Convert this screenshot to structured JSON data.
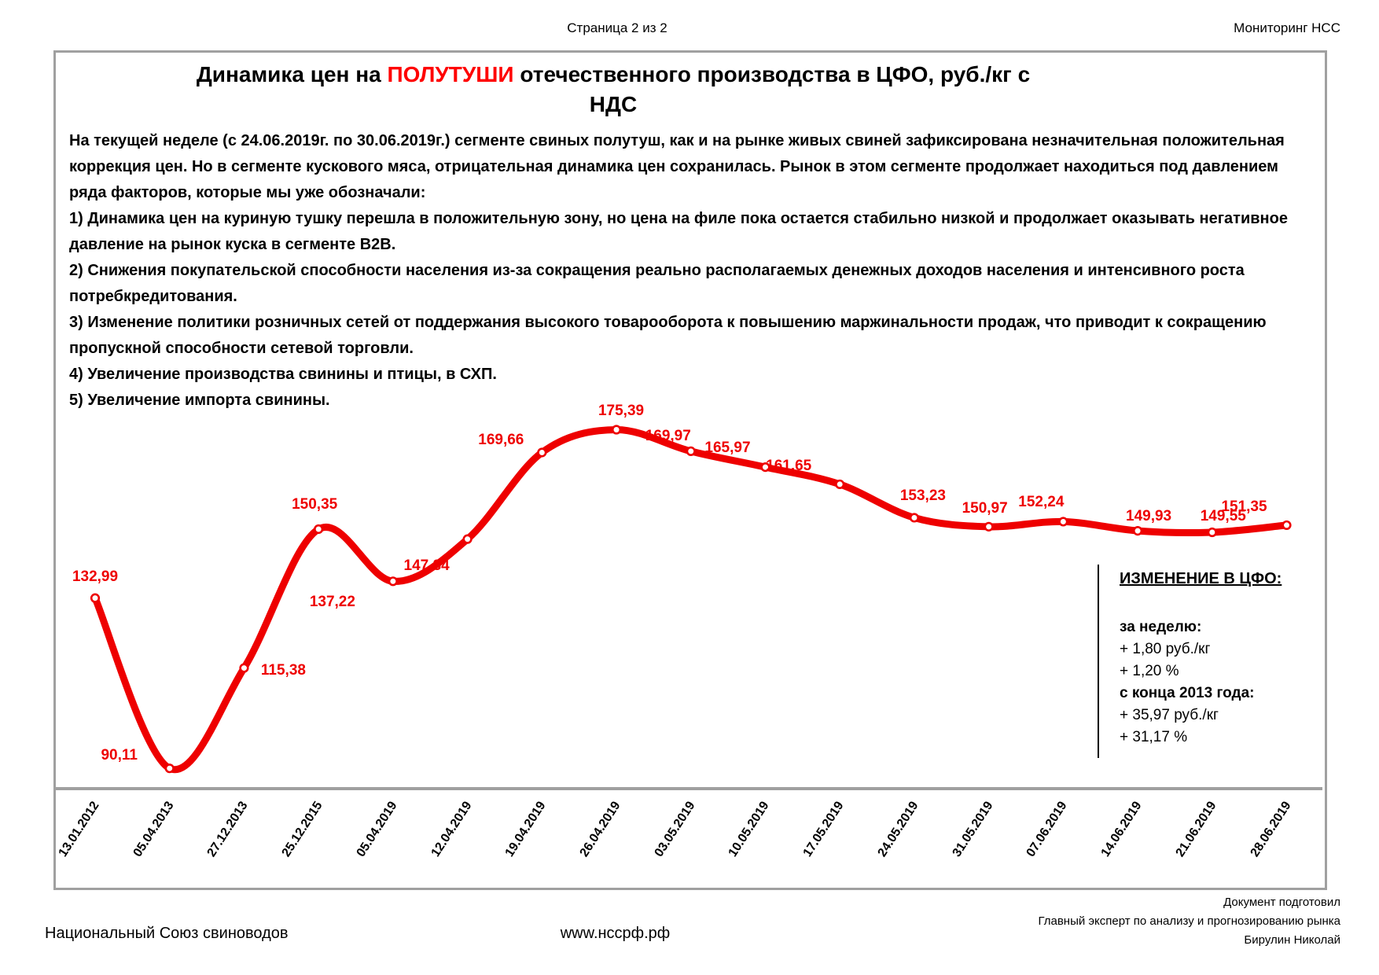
{
  "header": {
    "page_label": "Страница 2 из 2",
    "right_label": "Мониторинг НСС"
  },
  "title": {
    "line1_pre": "Динамика цен на ",
    "line1_red": "ПОЛУТУШИ",
    "line1_post": " отечественного производства в ЦФО, руб./кг с",
    "line2": "НДС",
    "highlight_color": "#ff0000"
  },
  "paragraphs": [
    "На текущей неделе (с 24.06.2019г. по 30.06.2019г.) сегменте свиных полутуш, как и на рынке живых свиней зафиксирована незначительная положительная коррекция цен. Но в сегменте кускового мяса, отрицательная динамика цен сохранилась. Рынок в этом сегменте продолжает находиться под давлением ряда факторов, которые мы уже обозначали:",
    "1) Динамика цен на куриную тушку перешла в положительную зону, но цена на филе пока остается стабильно низкой и продолжает оказывать негативное давление на рынок куска в сегменте B2B.",
    "2) Снижения покупательской способности населения из-за сокращения реально располагаемых денежных доходов населения и интенсивного роста потребкредитования.",
    "3) Изменение политики розничных сетей от поддержания высокого товарооборота к повышению маржинальности продаж, что приводит к сокращению пропускной способности сетевой торговли.",
    "4) Увеличение производства свинины и птицы, в СХП.",
    "5) Увеличение импорта свинины."
  ],
  "chart_data": {
    "type": "line",
    "title": "Динамика цен на ПОЛУТУШИ отечественного производства в ЦФО, руб./кг с НДС",
    "categories": [
      "13.01.2012",
      "05.04.2013",
      "27.12.2013",
      "25.12.2015",
      "05.04.2019",
      "12.04.2019",
      "19.04.2019",
      "26.04.2019",
      "03.05.2019",
      "10.05.2019",
      "17.05.2019",
      "24.05.2019",
      "31.05.2019",
      "07.06.2019",
      "14.06.2019",
      "21.06.2019",
      "28.06.2019"
    ],
    "values": [
      132.99,
      90.11,
      115.38,
      150.35,
      137.22,
      147.84,
      169.66,
      175.39,
      169.97,
      165.97,
      161.65,
      153.23,
      150.97,
      152.24,
      149.93,
      149.55,
      151.35
    ],
    "point_labels": [
      "132,99",
      "90,11",
      "115,38",
      "150,35",
      "137,22",
      "147,84",
      "169,66",
      "175,39",
      "169,97",
      "165,97",
      "161,65",
      "153,23",
      "150,97",
      "152,24",
      "149,93",
      "149,55",
      "151,35"
    ],
    "xlabel": "",
    "ylabel": "",
    "ylim": [
      85,
      190
    ],
    "grid": false,
    "legend": "none",
    "smoothed": true,
    "line_color": "#ee0000",
    "marker": "white-circle-red-ring",
    "axis_line_color": "#a0a0a0",
    "x_label_rotation_deg": 57
  },
  "annotation_panel": {
    "title": "ИЗМЕНЕНИЕ В ЦФО:",
    "lines": [
      {
        "text": "за неделю:",
        "bold": true
      },
      {
        "text": "+ 1,80 руб./кг",
        "bold": false
      },
      {
        "text": "+ 1,20 %",
        "bold": false
      },
      {
        "text": "с конца 2013 года:",
        "bold": true
      },
      {
        "text": "+ 35,97 руб./кг",
        "bold": false
      },
      {
        "text": "+ 31,17 %",
        "bold": false
      }
    ]
  },
  "footer": {
    "left": "Национальный Союз свиноводов",
    "center": "www.нссрф.рф",
    "right_lines": [
      "Документ подготовил",
      "Главный эксперт по анализу и прогнозированию рынка",
      "Бирулин Николай"
    ]
  }
}
